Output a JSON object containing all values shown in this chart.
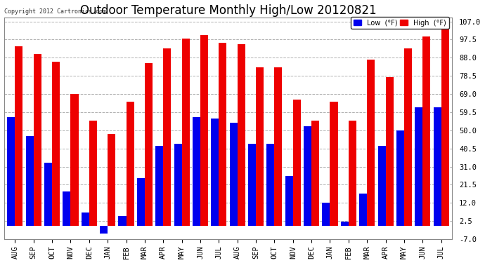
{
  "title": "Outdoor Temperature Monthly High/Low 20120821",
  "copyright": "Copyright 2012 Cartronics.com",
  "months": [
    "AUG",
    "SEP",
    "OCT",
    "NOV",
    "DEC",
    "JAN",
    "FEB",
    "MAR",
    "APR",
    "MAY",
    "JUN",
    "JUL",
    "AUG",
    "SEP",
    "OCT",
    "NOV",
    "DEC",
    "JAN",
    "FEB",
    "MAR",
    "APR",
    "MAY",
    "JUN",
    "JUL"
  ],
  "highs": [
    94,
    90,
    86,
    69,
    55,
    48,
    65,
    85,
    93,
    98,
    100,
    96,
    95,
    83,
    83,
    66,
    55,
    65,
    55,
    87,
    78,
    93,
    99,
    107
  ],
  "lows": [
    57,
    47,
    33,
    18,
    7,
    -4,
    5,
    25,
    42,
    43,
    57,
    56,
    54,
    43,
    43,
    26,
    52,
    12,
    2,
    17,
    42,
    50,
    62,
    62
  ],
  "low_color": "#0000ee",
  "high_color": "#ee0000",
  "bg_color": "#ffffff",
  "grid_color": "#b0b0b0",
  "ylim": [
    -7,
    109
  ],
  "yticks": [
    -7.0,
    2.5,
    12.0,
    21.5,
    31.0,
    40.5,
    50.0,
    59.5,
    69.0,
    78.5,
    88.0,
    97.5,
    107.0
  ],
  "title_fontsize": 12,
  "bar_width": 0.42,
  "legend_low_label": "Low  (°F)",
  "legend_high_label": "High  (°F)"
}
